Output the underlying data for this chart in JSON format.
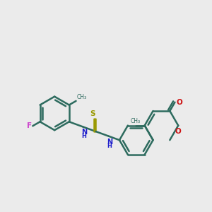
{
  "bg_color": "#ebebeb",
  "bond_color": "#2d6b5e",
  "bond_width": 1.8,
  "n_color": "#2020cc",
  "o_color": "#cc1111",
  "f_color": "#cc44cc",
  "s_color": "#999900",
  "fig_width": 3.0,
  "fig_height": 3.0,
  "dpi": 100,
  "xlim": [
    0,
    10
  ],
  "ylim": [
    2.5,
    8.5
  ],
  "r_ring": 0.8
}
